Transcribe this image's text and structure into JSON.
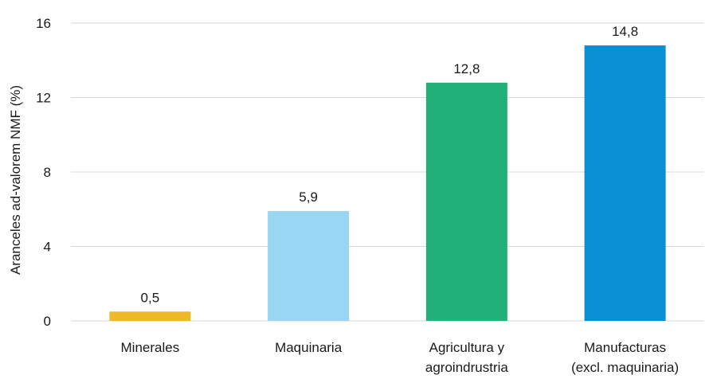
{
  "chart_data": {
    "type": "bar",
    "title": "",
    "xlabel": "",
    "ylabel": "Aranceles ad-valorem NMF (%)",
    "ylim": [
      0,
      16
    ],
    "yticks": [
      0,
      4,
      8,
      12,
      16
    ],
    "grid": true,
    "categories": [
      [
        "Minerales"
      ],
      [
        "Maquinaria"
      ],
      [
        "Agricultura y",
        "agroindrustria"
      ],
      [
        "Manufacturas",
        "(excl. maquinaria)"
      ]
    ],
    "values": [
      0.5,
      5.9,
      12.8,
      14.8
    ],
    "value_labels": [
      "0,5",
      "5,9",
      "12,8",
      "14,8"
    ],
    "tick_labels": [
      "0",
      "4",
      "8",
      "12",
      "16"
    ],
    "colors": [
      "#f0b929",
      "#99d6f4",
      "#22b07a",
      "#0a8fd4"
    ]
  }
}
